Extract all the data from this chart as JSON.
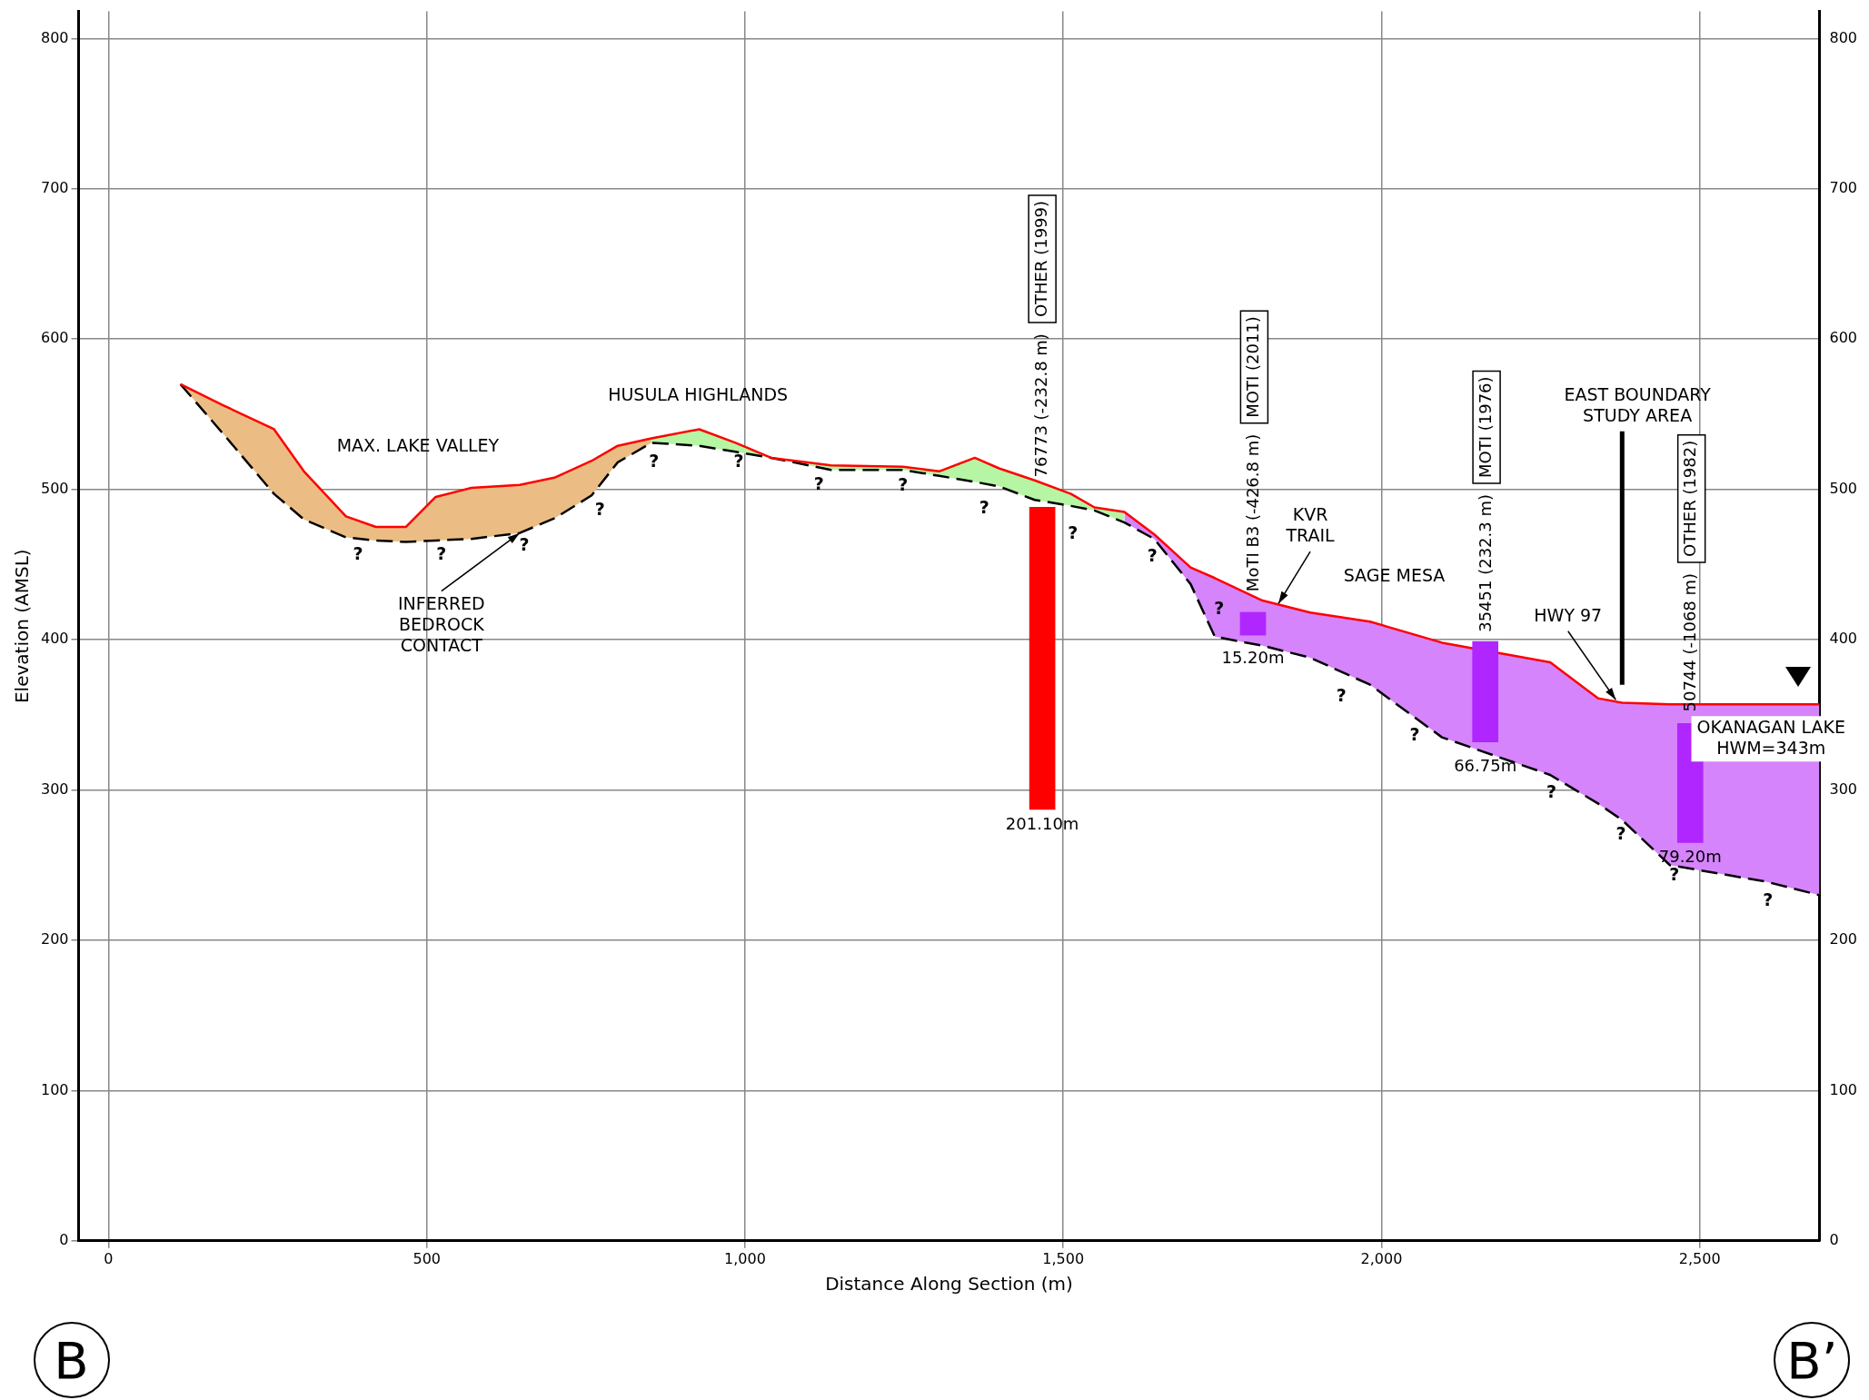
{
  "chart_data": {
    "type": "area",
    "xlabel": "Distance Along Section (m)",
    "ylabel": "Elevation (AMSL)",
    "xlim": [
      -47,
      2688
    ],
    "ylim": [
      0,
      818
    ],
    "y2lim": [
      0,
      818
    ],
    "xticks": [
      0,
      500,
      {
        "value": 1000,
        "label": "1,000"
      },
      {
        "value": 1500,
        "label": "1,500"
      },
      {
        "value": 2000,
        "label": "2,000"
      },
      {
        "value": 2500,
        "label": "2,500"
      }
    ],
    "yticks": [
      0,
      100,
      200,
      300,
      400,
      500,
      600,
      700,
      800
    ],
    "y2ticks": [
      0,
      100,
      200,
      300,
      400,
      500,
      600,
      700,
      800
    ],
    "grid": true,
    "legend": false,
    "marker": "none",
    "series": [
      {
        "color": "#ebbd84",
        "x": [
          113,
          180,
          260,
          307,
          373,
          420,
          467,
          514,
          570,
          646,
          702,
          759,
          800,
          853
        ],
        "values": [
          570,
          556,
          540,
          512,
          482,
          475,
          475,
          495,
          501,
          503,
          508,
          519,
          529,
          534
        ]
      },
      {
        "color": "#b5f5a3",
        "x": [
          853,
          928,
          985,
          1041,
          1135,
          1248,
          1305,
          1361,
          1399,
          1455,
          1512,
          1549,
          1596
        ],
        "values": [
          534,
          540,
          531,
          521,
          516,
          515,
          512,
          521,
          514,
          506,
          497,
          488,
          485
        ]
      },
      {
        "color": "#d584fb",
        "x": [
          1596,
          1643,
          1700,
          1738,
          1813,
          1888,
          1982,
          2095,
          2265,
          2340,
          2378,
          2453,
          2604,
          2688
        ],
        "values": [
          485,
          470,
          448,
          441,
          426,
          418,
          412,
          398,
          385,
          361,
          358,
          357,
          357,
          357
        ]
      },
      {
        "type": "line",
        "color": "#ff0000",
        "line_style": "solid",
        "x": [
          113,
          180,
          260,
          307,
          373,
          420,
          467,
          514,
          570,
          646,
          702,
          759,
          800,
          853,
          928,
          985,
          1041,
          1135,
          1248,
          1305,
          1361,
          1399,
          1455,
          1512,
          1549,
          1596,
          1643,
          1700,
          1738,
          1813,
          1888,
          1982,
          2095,
          2265,
          2340,
          2378,
          2453,
          2604,
          2688
        ],
        "values": [
          570,
          556,
          540,
          512,
          482,
          475,
          475,
          495,
          501,
          503,
          508,
          519,
          529,
          534,
          540,
          531,
          521,
          516,
          515,
          512,
          521,
          514,
          506,
          497,
          488,
          485,
          470,
          448,
          441,
          426,
          418,
          412,
          398,
          385,
          361,
          358,
          357,
          357,
          357
        ]
      },
      {
        "type": "line",
        "color": "#000000",
        "line_style": "dashed",
        "x": [
          113,
          180,
          260,
          307,
          373,
          420,
          467,
          514,
          570,
          646,
          702,
          759,
          800,
          853,
          928,
          985,
          1041,
          1135,
          1248,
          1305,
          1361,
          1399,
          1455,
          1512,
          1549,
          1596,
          1643,
          1700,
          1738,
          1813,
          1888,
          1982,
          2095,
          2265,
          2340,
          2378,
          2453,
          2604,
          2688
        ],
        "values": [
          570,
          537,
          497,
          480,
          468,
          466,
          465,
          466,
          467,
          471,
          481,
          496,
          518,
          531,
          529,
          525,
          521,
          513,
          513,
          509,
          505,
          502,
          493,
          489,
          486,
          478,
          467,
          437,
          402,
          396,
          388,
          370,
          335,
          310,
          291,
          280,
          250,
          239,
          230
        ]
      },
      {
        "type": "bar",
        "color": "#ff0000",
        "x": [
          1467
        ],
        "base": [
          287
        ],
        "values": [
          201.1
        ],
        "value_labels": [
          "201.10m"
        ]
      },
      {
        "type": "bar",
        "color": "#b026ff",
        "x": [
          1798
        ],
        "base": [
          403
        ],
        "values": [
          15.2
        ],
        "value_labels": [
          "15.20m"
        ]
      },
      {
        "type": "bar",
        "color": "#b026ff",
        "x": [
          2163
        ],
        "base": [
          332
        ],
        "values": [
          66.75
        ],
        "value_labels": [
          "66.75m"
        ]
      },
      {
        "type": "bar",
        "color": "#b026ff",
        "x": [
          2485
        ],
        "base": [
          265
        ],
        "values": [
          79.2
        ],
        "value_labels": [
          "79.20m"
        ]
      }
    ],
    "annotations": [
      "OTHER (1999)",
      "76773 (-232.8 m)",
      "MOTI (2011)",
      "MoTI B3 (-426.8 m)",
      "MOTI (1976)",
      "35451 (232.3 m)",
      "OTHER (1982)",
      "50744 (-1068 m)",
      "MAX. LAKE VALLEY",
      "HUSULA HIGHLANDS",
      {
        "text": "INFERRED\nBEDROCK\nCONTACT",
        "x": 646,
        "y": 471
      },
      {
        "text": "KVR\nTRAIL",
        "x": 1838,
        "y": 424
      },
      "SAGE MESA",
      {
        "text": "HWY 97",
        "x": 2368,
        "y": 360
      },
      "EAST BOUNDARY\nSTUDY AREA",
      "OKANAGAN LAKE\nHWM=343m",
      "?",
      "?",
      "?",
      "?",
      "?",
      "?",
      "?",
      "?",
      "?",
      "?",
      "?",
      "?",
      "?",
      "?",
      "?",
      "?",
      "?",
      "?",
      "B",
      "B’"
    ]
  }
}
